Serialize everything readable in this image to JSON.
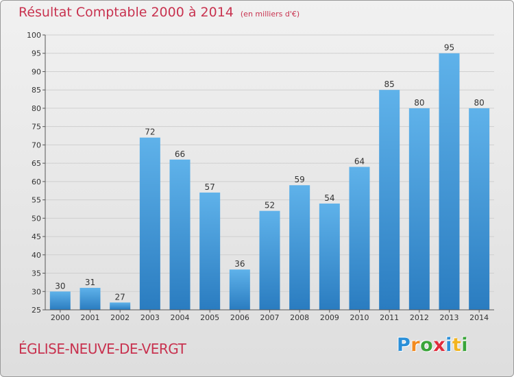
{
  "title": "Résultat Comptable 2000 à 2014",
  "subtitle": "(en milliers d'€)",
  "place_name": "ÉGLISE-NEUVE-DE-VERGT",
  "logo": {
    "text": "Proxiti",
    "letters": [
      "P",
      "r",
      "o",
      "x",
      "i",
      "t",
      "i"
    ],
    "colors": [
      "#2a8fd8",
      "#f28a1f",
      "#3aa53a",
      "#e02b3c",
      "#2a8fd8",
      "#f2b41f",
      "#3aa53a"
    ]
  },
  "colors": {
    "title": "#c8324f",
    "bar_top": "#5fb2ea",
    "bar_bottom": "#2a7cc0",
    "grid": "#cfcfcf",
    "axis": "#555555",
    "label": "#333333"
  },
  "chart_data": {
    "type": "bar",
    "categories": [
      "2000",
      "2001",
      "2002",
      "2003",
      "2004",
      "2005",
      "2006",
      "2007",
      "2008",
      "2009",
      "2010",
      "2011",
      "2012",
      "2013",
      "2014"
    ],
    "values": [
      30,
      31,
      27,
      72,
      66,
      57,
      36,
      52,
      59,
      54,
      64,
      85,
      80,
      95,
      80
    ],
    "data_labels": [
      "30",
      "31",
      "27",
      "72",
      "66",
      "57",
      "36",
      "52",
      "59",
      "54",
      "64",
      "85",
      "80",
      "95",
      "80"
    ],
    "ylim": [
      25,
      100
    ],
    "yticks": [
      25,
      30,
      35,
      40,
      45,
      50,
      55,
      60,
      65,
      70,
      75,
      80,
      85,
      90,
      95,
      100
    ],
    "xlabel": "",
    "ylabel": "",
    "grid": true
  }
}
